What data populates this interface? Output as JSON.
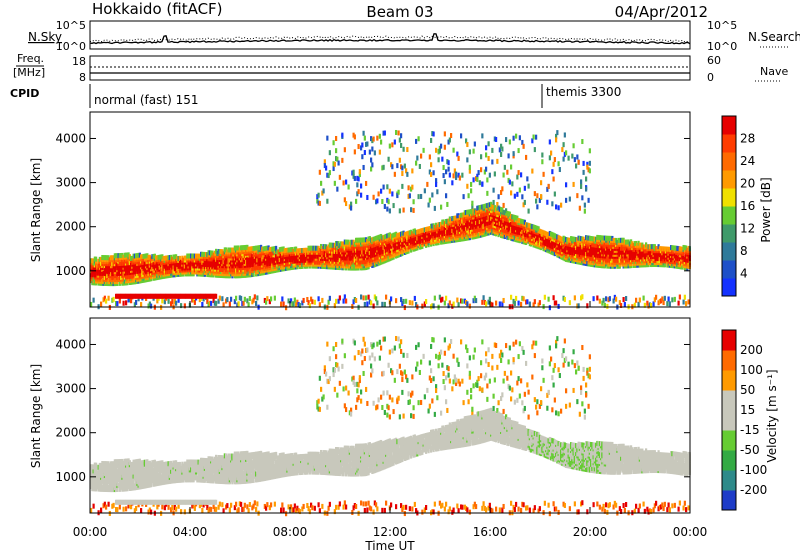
{
  "header": {
    "station": "Hokkaido (fitACF)",
    "beam": "Beam 03",
    "date": "04/Apr/2012"
  },
  "noise_panel": {
    "left_label": "N.Sky",
    "right_label": "N.Search",
    "left_ticks": [
      "10^5",
      "10^0"
    ],
    "right_ticks": [
      "10^5",
      "10^0"
    ]
  },
  "freq_panel": {
    "left_label_1": "Freq.",
    "left_label_2": "[MHz]",
    "right_label": "Nave",
    "left_ticks": [
      "18",
      "8"
    ],
    "right_ticks": [
      "60",
      "0"
    ]
  },
  "cpid_panel": {
    "label": "CPID",
    "modes": [
      {
        "name": "normal (fast) 151",
        "start_h": 0
      },
      {
        "name": "themis 3300",
        "start_h": 18
      }
    ]
  },
  "chart_data": [
    {
      "type": "heatmap",
      "title": "",
      "ylabel": "Slant Range [km]",
      "xlabel": "",
      "yticks": [
        1000,
        2000,
        3000,
        4000
      ],
      "ylim": [
        180,
        4600
      ],
      "xlim": [
        0,
        24
      ],
      "colorbar": {
        "label": "Power [dB]",
        "ticks": [
          "4",
          "8",
          "12",
          "16",
          "20",
          "24",
          "28"
        ],
        "colors": [
          "#1432ff",
          "#1e50c8",
          "#2f7a9a",
          "#3f9a6a",
          "#66cc33",
          "#f0e000",
          "#ff9a00",
          "#ff6a00",
          "#ff3c00",
          "#e60000"
        ]
      }
    },
    {
      "type": "heatmap",
      "title": "",
      "ylabel": "Slant Range [km]",
      "xlabel": "Time UT",
      "xticks": [
        "00:00",
        "04:00",
        "08:00",
        "12:00",
        "16:00",
        "20:00",
        "00:00"
      ],
      "yticks": [
        1000,
        2000,
        3000,
        4000
      ],
      "ylim": [
        180,
        4600
      ],
      "xlim": [
        0,
        24
      ],
      "colorbar": {
        "label": "Velocity [m s⁻¹]",
        "ticks": [
          "200",
          "100",
          "50",
          "15",
          "-15",
          "-50",
          "-100",
          "-200"
        ],
        "colors": [
          "#1e3cc8",
          "#2e8a8a",
          "#33aa44",
          "#66cc33",
          "#c8c8bc",
          "#c8c8bc",
          "#ff9a00",
          "#ff6a00",
          "#e60000"
        ]
      }
    }
  ]
}
